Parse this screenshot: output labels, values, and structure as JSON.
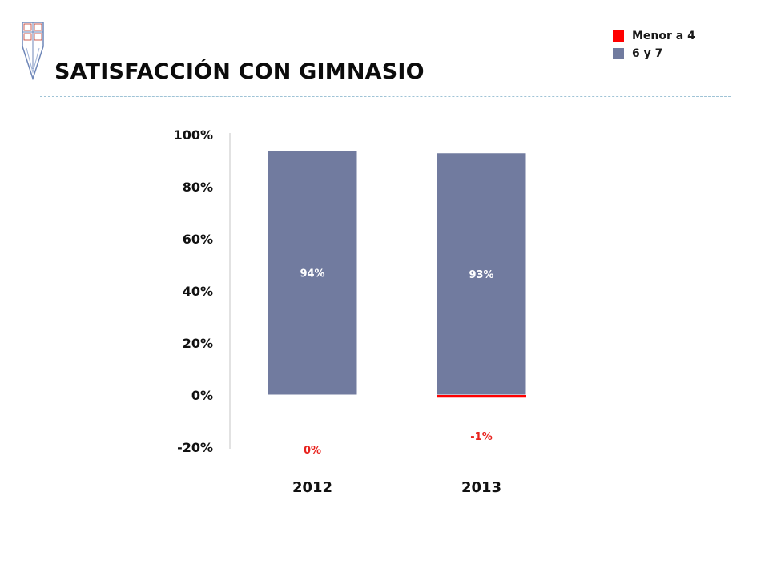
{
  "header": {
    "title": "SATISFACCIÓN CON GIMNASIO"
  },
  "colors": {
    "series_low": "#ff0000",
    "series_high": "#717b9f",
    "divider": "#9fc3d6",
    "negative_label": "#e8231e"
  },
  "legend": {
    "items": [
      {
        "label": "Menor a 4",
        "color": "#ff0000"
      },
      {
        "label": "6 y 7",
        "color": "#717b9f"
      }
    ]
  },
  "chart_data": {
    "type": "bar",
    "stacked": true,
    "categories": [
      "2012",
      "2013"
    ],
    "series": [
      {
        "name": "Menor a 4",
        "values": [
          0,
          -1
        ],
        "labels": [
          "0%",
          "-1%"
        ],
        "color": "#ff0000"
      },
      {
        "name": "6 y 7",
        "values": [
          94,
          93
        ],
        "labels": [
          "94%",
          "93%"
        ],
        "color": "#717b9f"
      }
    ],
    "ylim": [
      -20,
      100
    ],
    "yticks": [
      100,
      80,
      60,
      40,
      20,
      0,
      -20
    ],
    "ytick_labels": [
      "100%",
      "80%",
      "60%",
      "40%",
      "20%",
      "0%",
      "-20%"
    ],
    "grid": false,
    "legend_position": "top-right"
  }
}
